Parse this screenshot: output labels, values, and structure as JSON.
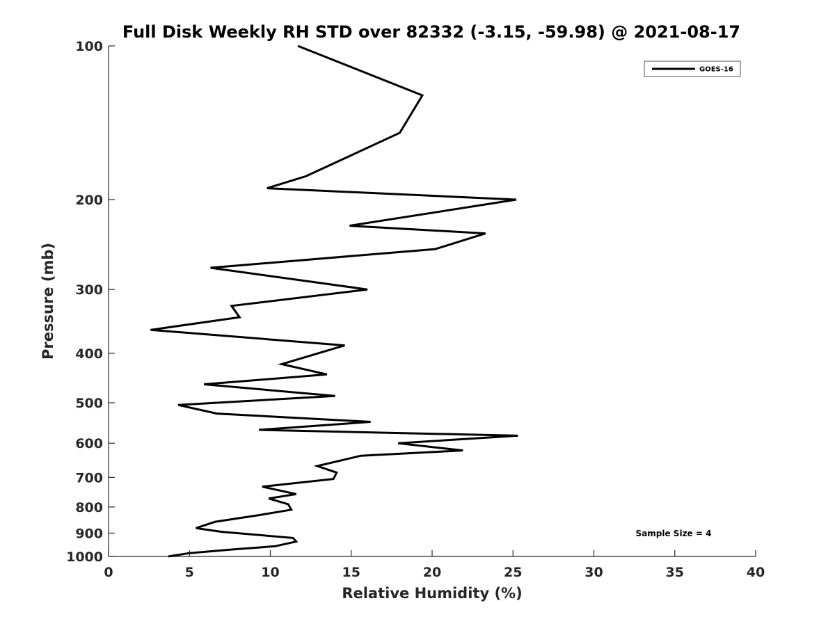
{
  "chart_data": {
    "type": "line",
    "title": "Full Disk Weekly RH STD over 82332 (-3.15, -59.98) @ 2021-08-17",
    "xlabel": "Relative Humidity (%)",
    "ylabel": "Pressure (mb)",
    "xlim": [
      0,
      40
    ],
    "ylim": [
      100,
      1000
    ],
    "yscale": "log",
    "reversed_y": true,
    "grid": false,
    "x_ticks": [
      0,
      5,
      10,
      15,
      20,
      25,
      30,
      35,
      40
    ],
    "y_ticks": [
      100,
      200,
      300,
      400,
      500,
      600,
      700,
      800,
      900,
      1000
    ],
    "legend": {
      "position": "top-right",
      "entries": [
        "GOES-16"
      ]
    },
    "annotation": "Sample Size = 4",
    "series": [
      {
        "name": "GOES-16",
        "color": "#000000",
        "x": [
          11.7,
          19.4,
          18.0,
          12.2,
          9.8,
          25.2,
          14.9,
          23.3,
          20.2,
          6.3,
          16.0,
          7.6,
          8.1,
          2.6,
          14.6,
          10.7,
          13.5,
          5.9,
          14.0,
          4.3,
          6.7,
          16.2,
          9.3,
          25.3,
          17.9,
          21.9,
          15.6,
          12.9,
          14.1,
          13.9,
          9.5,
          11.6,
          9.9,
          11.1,
          11.3,
          9.3,
          6.6,
          5.4,
          7.0,
          11.4,
          11.6,
          10.3,
          7.5,
          5.0,
          3.7
        ],
        "y": [
          100,
          125,
          148,
          180,
          190,
          200,
          225,
          233,
          250,
          272,
          300,
          323,
          340,
          360,
          386,
          420,
          440,
          460,
          485,
          505,
          525,
          545,
          565,
          580,
          600,
          620,
          635,
          665,
          685,
          705,
          730,
          755,
          770,
          790,
          810,
          830,
          855,
          880,
          895,
          920,
          935,
          955,
          970,
          985,
          1000
        ]
      }
    ]
  }
}
